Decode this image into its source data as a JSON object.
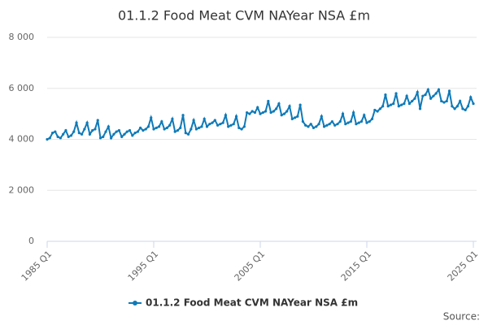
{
  "chart_data": {
    "type": "line",
    "title": "01.1.2 Food Meat CVM NAYear NSA £m",
    "source": "Source:",
    "categories": [
      "1985 Q1",
      null,
      null,
      null,
      null,
      null,
      null,
      null,
      null,
      null,
      null,
      null,
      null,
      null,
      null,
      null,
      null,
      null,
      null,
      null,
      null,
      null,
      null,
      null,
      null,
      null,
      null,
      null,
      null,
      null,
      null,
      null,
      null,
      null,
      null,
      null,
      null,
      null,
      null,
      null,
      "1995 Q1",
      null,
      null,
      null,
      null,
      null,
      null,
      null,
      null,
      null,
      null,
      null,
      null,
      null,
      null,
      null,
      null,
      null,
      null,
      null,
      null,
      null,
      null,
      null,
      null,
      null,
      null,
      null,
      null,
      null,
      null,
      null,
      null,
      null,
      null,
      null,
      null,
      null,
      null,
      null,
      "2005 Q1",
      null,
      null,
      null,
      null,
      null,
      null,
      null,
      null,
      null,
      null,
      null,
      null,
      null,
      null,
      null,
      null,
      null,
      null,
      null,
      null,
      null,
      null,
      null,
      null,
      null,
      null,
      null,
      null,
      null,
      null,
      null,
      null,
      null,
      null,
      null,
      null,
      null,
      null,
      null,
      "2015 Q1",
      null,
      null,
      null,
      null,
      null,
      null,
      null,
      null,
      null,
      null,
      null,
      null,
      null,
      null,
      null,
      null,
      null,
      null,
      null,
      null,
      null,
      null,
      null,
      null,
      null,
      null,
      null,
      null,
      null,
      null,
      null,
      null,
      null,
      null,
      null,
      null,
      null,
      null,
      null,
      "2025 Q1"
    ],
    "series": [
      {
        "name": "01.1.2 Food Meat CVM NAYear NSA £m",
        "color": "#0f7ab8",
        "values": [
          4000,
          4050,
          4250,
          4300,
          4100,
          4050,
          4200,
          4350,
          4100,
          4150,
          4300,
          4650,
          4250,
          4200,
          4400,
          4650,
          4200,
          4350,
          4400,
          4750,
          4050,
          4100,
          4300,
          4500,
          4050,
          4200,
          4300,
          4350,
          4100,
          4200,
          4300,
          4350,
          4150,
          4250,
          4300,
          4450,
          4350,
          4400,
          4500,
          4850,
          4400,
          4450,
          4500,
          4700,
          4400,
          4450,
          4550,
          4800,
          4300,
          4350,
          4450,
          4950,
          4250,
          4200,
          4400,
          4750,
          4400,
          4450,
          4500,
          4800,
          4500,
          4600,
          4650,
          4750,
          4550,
          4600,
          4650,
          4950,
          4500,
          4550,
          4600,
          4900,
          4450,
          4400,
          4500,
          5050,
          5000,
          5100,
          5050,
          5250,
          5000,
          5050,
          5100,
          5500,
          5050,
          5100,
          5200,
          5400,
          4950,
          5000,
          5100,
          5300,
          4800,
          4850,
          4900,
          5350,
          4700,
          4550,
          4500,
          4600,
          4450,
          4500,
          4600,
          4900,
          4500,
          4550,
          4600,
          4700,
          4550,
          4600,
          4700,
          5000,
          4600,
          4650,
          4700,
          5050,
          4600,
          4650,
          4700,
          4950,
          4650,
          4700,
          4800,
          5150,
          5100,
          5200,
          5300,
          5750,
          5300,
          5350,
          5400,
          5800,
          5300,
          5350,
          5400,
          5700,
          5400,
          5500,
          5600,
          5850,
          5200,
          5700,
          5750,
          5950,
          5600,
          5700,
          5800,
          5950,
          5500,
          5450,
          5500,
          5900,
          5300,
          5200,
          5300,
          5500,
          5200,
          5150,
          5300,
          5650,
          5400
        ]
      }
    ],
    "ylim": [
      0,
      8000
    ],
    "yticks": [
      0,
      {
        "value": 2000,
        "label": "2 000"
      },
      {
        "value": 4000,
        "label": "4 000"
      },
      {
        "value": 6000,
        "label": "6 000"
      },
      {
        "value": 8000,
        "label": "8 000"
      }
    ],
    "grid": true,
    "legend": "bottom"
  }
}
